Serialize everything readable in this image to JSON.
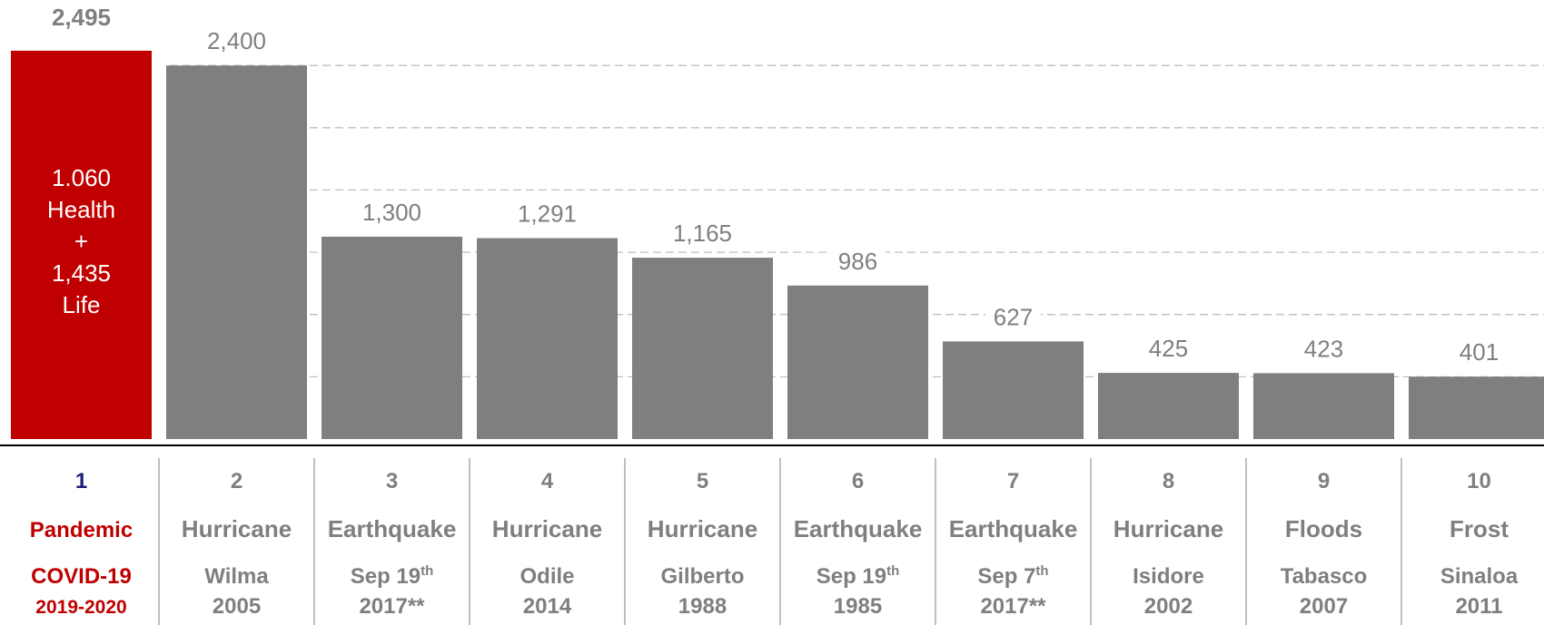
{
  "colors": {
    "highlight": "#c00000",
    "bar": "#7f7f7f",
    "grid": "#bfbfbf",
    "rank_first": "#1f1f7a",
    "text": "#7f7f7f"
  },
  "chart_data": {
    "type": "bar",
    "ylim": [
      0,
      2500
    ],
    "grid": true,
    "gridlines": [
      400,
      800,
      1200,
      1600,
      2000,
      2400
    ],
    "categories": [
      {
        "rank": "1",
        "type": "Pandemic",
        "name": "COVID-19",
        "name_sup": "",
        "year": "2019-2020",
        "value": 2495,
        "label": "2,495",
        "inside_lines": [
          "1.060",
          "Health",
          "+",
          "1,435",
          "Life"
        ]
      },
      {
        "rank": "2",
        "type": "Hurricane",
        "name": "Wilma",
        "name_sup": "",
        "year": "2005",
        "value": 2400,
        "label": "2,400"
      },
      {
        "rank": "3",
        "type": "Earthquake",
        "name": "Sep 19",
        "name_sup": "th",
        "year": "2017**",
        "value": 1300,
        "label": "1,300"
      },
      {
        "rank": "4",
        "type": "Hurricane",
        "name": "Odile",
        "name_sup": "",
        "year": "2014",
        "value": 1291,
        "label": "1,291"
      },
      {
        "rank": "5",
        "type": "Hurricane",
        "name": "Gilberto",
        "name_sup": "",
        "year": "1988",
        "value": 1165,
        "label": "1,165"
      },
      {
        "rank": "6",
        "type": "Earthquake",
        "name": "Sep 19",
        "name_sup": "th",
        "year": "1985",
        "value": 986,
        "label": "986"
      },
      {
        "rank": "7",
        "type": "Earthquake",
        "name": "Sep 7",
        "name_sup": "th",
        "year": "2017**",
        "value": 627,
        "label": "627"
      },
      {
        "rank": "8",
        "type": "Hurricane",
        "name": "Isidore",
        "name_sup": "",
        "year": "2002",
        "value": 425,
        "label": "425"
      },
      {
        "rank": "9",
        "type": "Floods",
        "name": "Tabasco",
        "name_sup": "",
        "year": "2007",
        "value": 423,
        "label": "423"
      },
      {
        "rank": "10",
        "type": "Frost",
        "name": "Sinaloa",
        "name_sup": "",
        "year": "2011",
        "value": 401,
        "label": "401"
      }
    ]
  }
}
